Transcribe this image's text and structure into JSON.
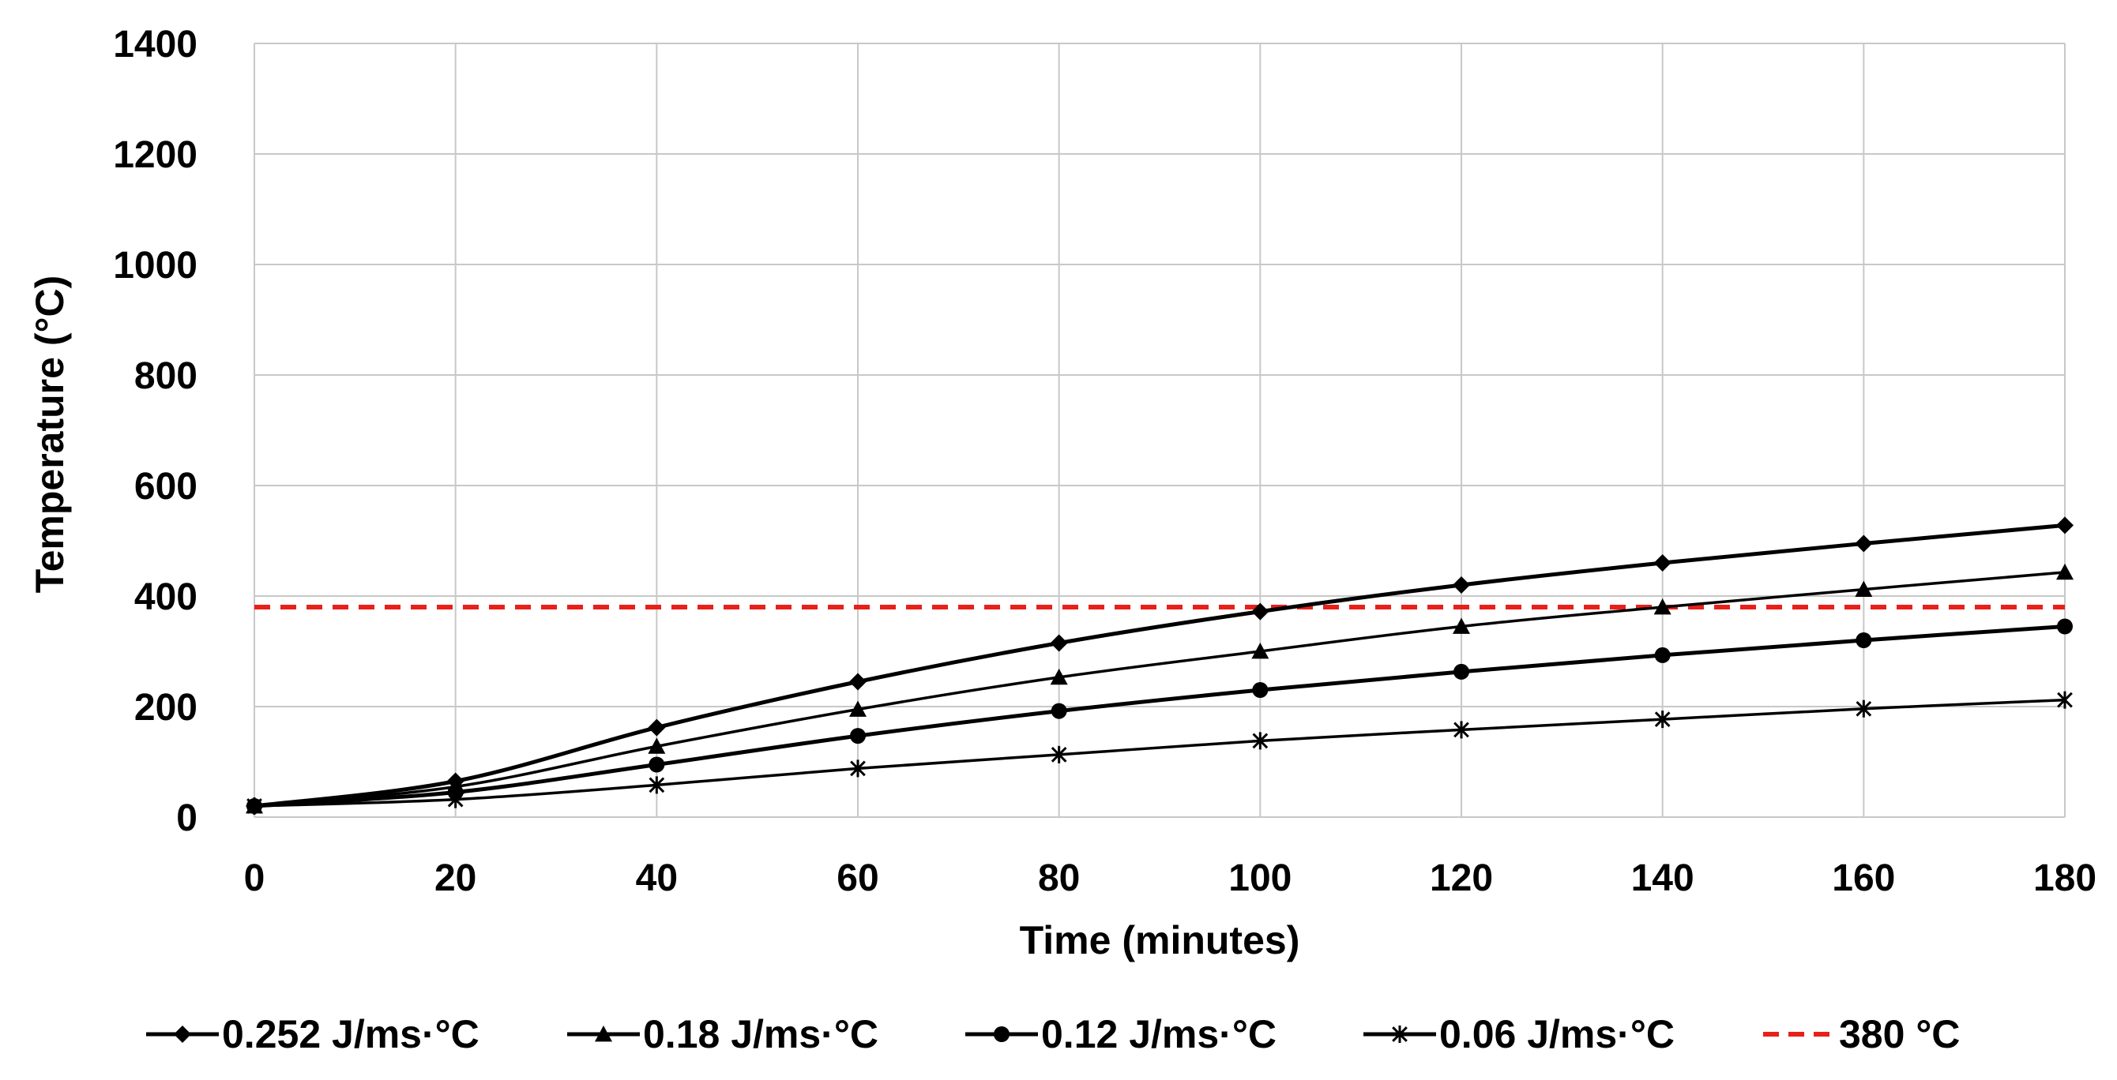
{
  "chart_data": {
    "type": "line",
    "title": "",
    "xlabel": "Time (minutes)",
    "ylabel": "Temperature (°C)",
    "xlim": [
      0,
      180
    ],
    "ylim": [
      0,
      1400
    ],
    "x_ticks": [
      0,
      20,
      40,
      60,
      80,
      100,
      120,
      140,
      160,
      180
    ],
    "y_ticks": [
      0,
      200,
      400,
      600,
      800,
      1000,
      1200,
      1400
    ],
    "grid": true,
    "legend_position": "bottom",
    "x": [
      0,
      20,
      40,
      60,
      80,
      100,
      120,
      140,
      160,
      180
    ],
    "series": [
      {
        "name": "0.252 J/ms·°C",
        "marker": "diamond",
        "color": "#000000",
        "values": [
          20,
          65,
          162,
          245,
          315,
          372,
          420,
          460,
          495,
          528
        ]
      },
      {
        "name": "0.18 J/ms·°C",
        "marker": "triangle",
        "color": "#000000",
        "values": [
          20,
          55,
          128,
          195,
          253,
          300,
          345,
          380,
          412,
          443
        ]
      },
      {
        "name": "0.12 J/ms·°C",
        "marker": "circle",
        "color": "#000000",
        "values": [
          20,
          45,
          95,
          147,
          192,
          230,
          263,
          293,
          320,
          345
        ]
      },
      {
        "name": "0.06 J/ms·°C",
        "marker": "asterisk",
        "color": "#000000",
        "values": [
          20,
          32,
          58,
          88,
          113,
          138,
          158,
          177,
          196,
          212
        ]
      }
    ],
    "reference_line": {
      "name": "380 °C",
      "value": 380,
      "style": "dashed",
      "color": "#e8201a"
    }
  }
}
